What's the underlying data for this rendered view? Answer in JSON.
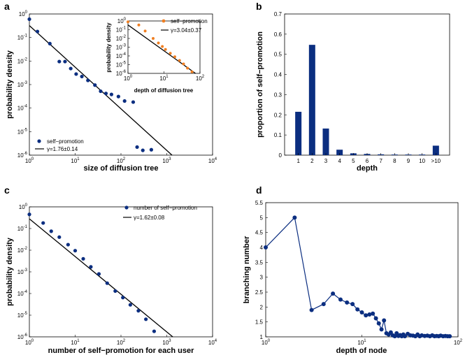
{
  "colors": {
    "navy": "#0b2e80",
    "orange": "#f07f22",
    "line": "#000000"
  },
  "chart_data": [
    {
      "panel": "a",
      "type": "scatter",
      "scale": "log-log",
      "xlabel": "size of diffusion tree",
      "ylabel": "probability density",
      "xlim": [
        1,
        10000
      ],
      "ylim": [
        1e-06,
        1
      ],
      "xticks": [
        {
          "b": "10",
          "e": "0"
        },
        {
          "b": "10",
          "e": "1"
        },
        {
          "b": "10",
          "e": "2"
        },
        {
          "b": "10",
          "e": "3"
        },
        {
          "b": "10",
          "e": "4"
        }
      ],
      "yticks": [
        {
          "b": "10",
          "e": "-6"
        },
        {
          "b": "10",
          "e": "-5"
        },
        {
          "b": "10",
          "e": "-4"
        },
        {
          "b": "10",
          "e": "-3"
        },
        {
          "b": "10",
          "e": "-2"
        },
        {
          "b": "10",
          "e": "-1"
        },
        {
          "b": "10",
          "e": "0"
        }
      ],
      "series": [
        {
          "name": "self−promotion",
          "x": [
            1,
            1.5,
            2.8,
            4.5,
            6,
            8,
            10.5,
            14,
            19,
            27,
            36,
            47,
            62,
            88,
            120,
            185,
            225,
            300,
            460
          ],
          "y": [
            0.6,
            0.18,
            0.055,
            0.0095,
            0.0095,
            0.0048,
            0.0028,
            0.0022,
            0.0015,
            0.00095,
            0.00052,
            0.00042,
            0.00038,
            0.00031,
            0.0002,
            0.00018,
            2.2e-06,
            1.6e-06,
            1.7e-06
          ]
        },
        {
          "name": "γ=1.76±0.14",
          "kind": "fit",
          "x": [
            1,
            1300
          ],
          "y": [
            0.32,
            1e-06
          ]
        }
      ],
      "inset": {
        "xlabel": "depth of diffusion tree",
        "ylabel": "probability density",
        "xlim": [
          1,
          100
        ],
        "ylim": [
          1e-06,
          1
        ],
        "xticks": [
          {
            "b": "10",
            "e": "0"
          },
          {
            "b": "10",
            "e": "1"
          },
          {
            "b": "10",
            "e": "2"
          }
        ],
        "yticks": [
          {
            "b": "10",
            "e": "-6"
          },
          {
            "b": "10",
            "e": "-5"
          },
          {
            "b": "10",
            "e": "-4"
          },
          {
            "b": "10",
            "e": "-3"
          },
          {
            "b": "10",
            "e": "-2"
          },
          {
            "b": "10",
            "e": "-1"
          },
          {
            "b": "10",
            "e": "0"
          }
        ],
        "series": [
          {
            "name": "self−promotion",
            "x": [
              1,
              2,
              3,
              5,
              7,
              9,
              11,
              15,
              20,
              27,
              35,
              45,
              60
            ],
            "y": [
              0.8,
              0.35,
              0.07,
              0.01,
              0.003,
              0.0012,
              0.00055,
              0.0002,
              8e-05,
              3e-05,
              1.2e-05,
              4e-06,
              1.5e-06
            ]
          },
          {
            "name": "γ=3.04±0.37",
            "kind": "fit",
            "x": [
              1,
              75
            ],
            "y": [
              0.35,
              1e-06
            ]
          }
        ]
      }
    },
    {
      "panel": "b",
      "type": "bar",
      "xlabel": "depth",
      "ylabel": "proportion of self−promotion",
      "ylim": [
        0,
        0.7
      ],
      "yticks": [
        "0",
        "0.1",
        "0.2",
        "0.3",
        "0.4",
        "0.5",
        "0.6",
        "0.7"
      ],
      "categories": [
        "1",
        "2",
        "3",
        "4",
        "5",
        "6",
        "7",
        "8",
        "9",
        "10",
        ">10"
      ],
      "values": [
        0.215,
        0.547,
        0.132,
        0.027,
        0.009,
        0.006,
        0.004,
        0.003,
        0.003,
        0.003,
        0.047
      ]
    },
    {
      "panel": "c",
      "type": "scatter",
      "scale": "log-log",
      "xlabel": "number of self−promotion for each user",
      "ylabel": "probability density",
      "xlim": [
        1,
        10000
      ],
      "ylim": [
        1e-06,
        1
      ],
      "xticks": [
        {
          "b": "10",
          "e": "0"
        },
        {
          "b": "10",
          "e": "1"
        },
        {
          "b": "10",
          "e": "2"
        },
        {
          "b": "10",
          "e": "3"
        },
        {
          "b": "10",
          "e": "4"
        }
      ],
      "yticks": [
        {
          "b": "10",
          "e": "-6"
        },
        {
          "b": "10",
          "e": "-5"
        },
        {
          "b": "10",
          "e": "-4"
        },
        {
          "b": "10",
          "e": "-3"
        },
        {
          "b": "10",
          "e": "-2"
        },
        {
          "b": "10",
          "e": "-1"
        },
        {
          "b": "10",
          "e": "0"
        }
      ],
      "series": [
        {
          "name": "number of self−promotion",
          "x": [
            1,
            2,
            3,
            4.5,
            7,
            10,
            15,
            22,
            33,
            50,
            75,
            110,
            160,
            240,
            350,
            530
          ],
          "y": [
            0.45,
            0.18,
            0.075,
            0.04,
            0.018,
            0.0095,
            0.004,
            0.0017,
            0.0008,
            0.0003,
            0.00013,
            6.5e-05,
            3e-05,
            1.6e-05,
            6.5e-06,
            1.8e-06
          ]
        },
        {
          "name": "γ=1.62±0.08",
          "kind": "fit",
          "x": [
            1,
            1350
          ],
          "y": [
            0.28,
            1e-06
          ]
        }
      ]
    },
    {
      "panel": "d",
      "type": "line",
      "scale": "semilog-x",
      "xlabel": "depth of node",
      "ylabel": "branching number",
      "xlim": [
        1,
        100
      ],
      "ylim": [
        1,
        5.5
      ],
      "xticks": [
        {
          "b": "10",
          "e": "0"
        },
        {
          "b": "10",
          "e": "1"
        },
        {
          "b": "10",
          "e": "2"
        }
      ],
      "yticks": [
        "1",
        "1.5",
        "2",
        "2.5",
        "3",
        "3.5",
        "4",
        "4.5",
        "5",
        "5.5"
      ],
      "series": [
        {
          "name": "branching number",
          "x": [
            1,
            2,
            3,
            4,
            5,
            6,
            7,
            8,
            9,
            10,
            11,
            12,
            13,
            14,
            15,
            16,
            17,
            18,
            19,
            20,
            21,
            22,
            23,
            24,
            25,
            26,
            27,
            28,
            30,
            32,
            34,
            36,
            38,
            40,
            42,
            45,
            48,
            51,
            54,
            57,
            60,
            63,
            66,
            70,
            74,
            78,
            82
          ],
          "y": [
            4.0,
            5.0,
            1.9,
            2.1,
            2.45,
            2.25,
            2.15,
            2.1,
            1.92,
            1.82,
            1.72,
            1.75,
            1.78,
            1.62,
            1.45,
            1.25,
            1.55,
            1.12,
            1.08,
            1.15,
            1.05,
            1.02,
            1.12,
            1.03,
            1.06,
            1.02,
            1.08,
            1.02,
            1.1,
            1.05,
            1.04,
            1.02,
            1.08,
            1.02,
            1.05,
            1.03,
            1.04,
            1.02,
            1.05,
            1.02,
            1.03,
            1.02,
            1.04,
            1.02,
            1.03,
            1.02,
            1.02
          ]
        }
      ]
    }
  ]
}
